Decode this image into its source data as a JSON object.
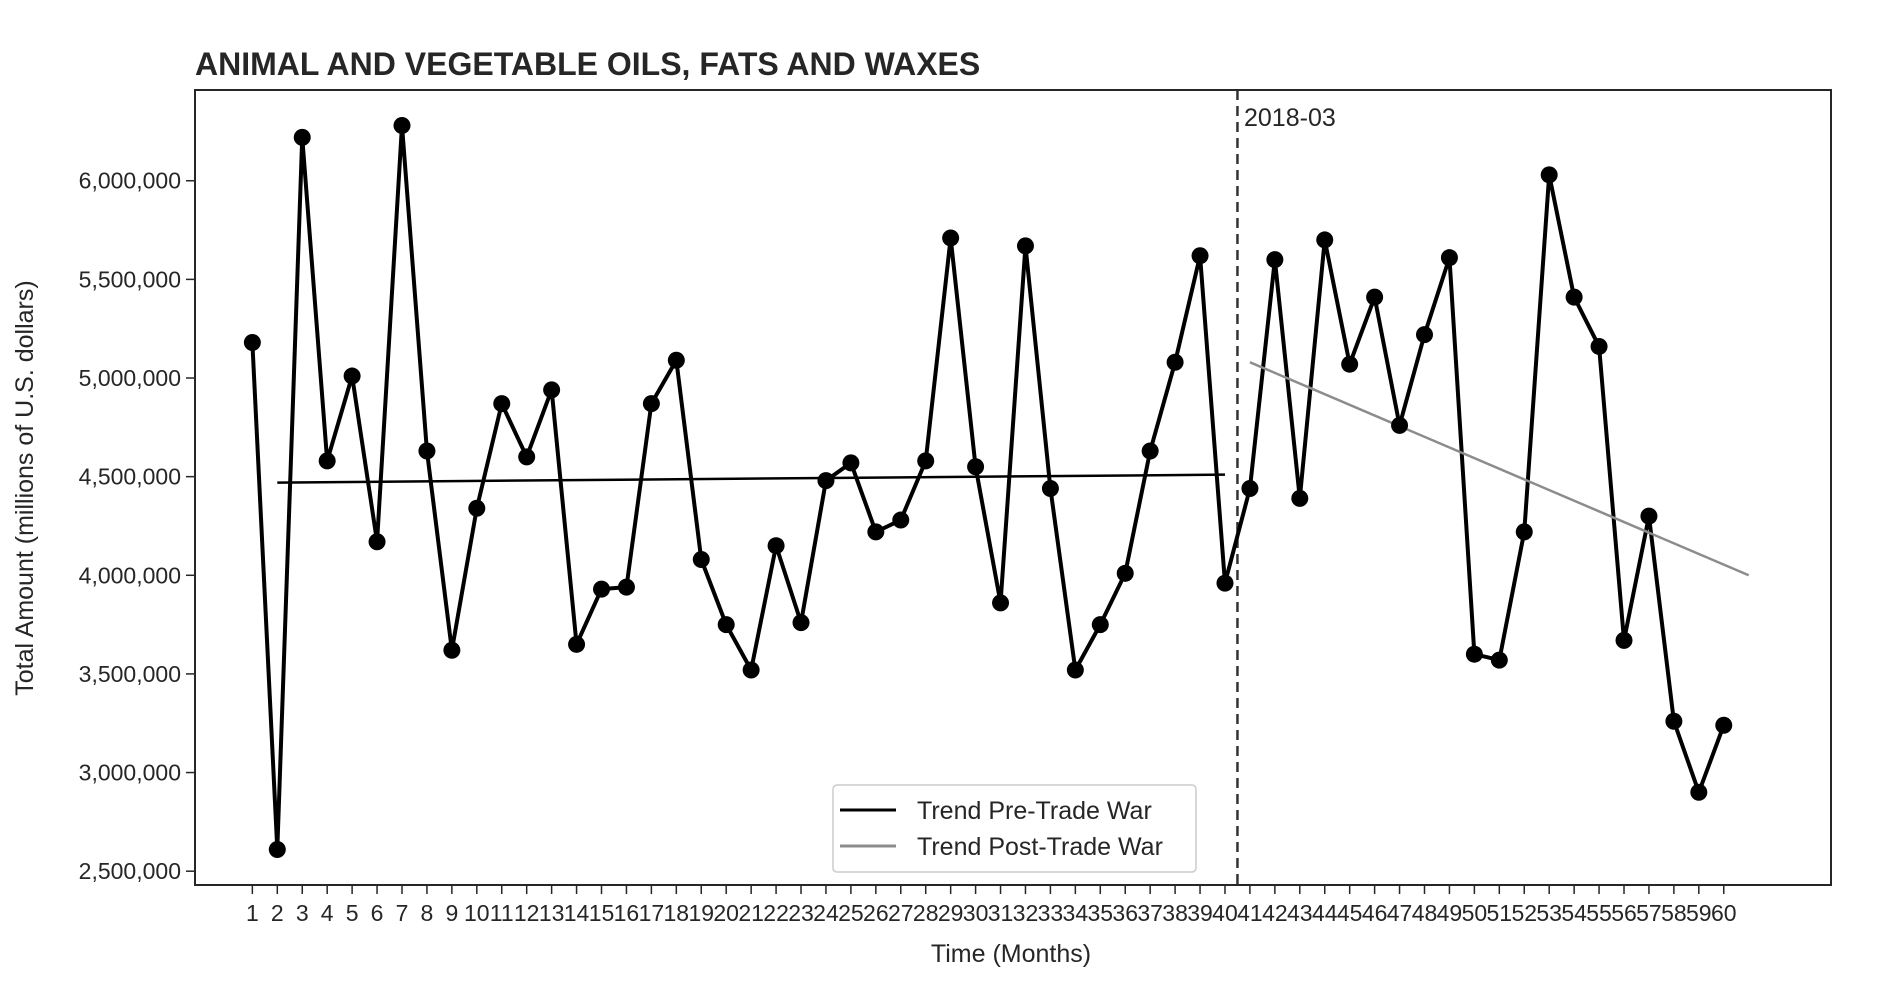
{
  "chart_data": {
    "type": "line",
    "title": "ANIMAL AND VEGETABLE OILS, FATS AND WAXES",
    "xlabel": "Time (Months)",
    "ylabel": "Total Amount (millions of U.S. dollars)",
    "x": [
      1,
      2,
      3,
      4,
      5,
      6,
      7,
      8,
      9,
      10,
      11,
      12,
      13,
      14,
      15,
      16,
      17,
      18,
      19,
      20,
      21,
      22,
      23,
      24,
      25,
      26,
      27,
      28,
      29,
      30,
      31,
      32,
      33,
      34,
      35,
      36,
      37,
      38,
      39,
      40,
      41,
      42,
      43,
      44,
      45,
      46,
      47,
      48,
      49,
      50,
      51,
      52,
      53,
      54,
      55,
      56,
      57,
      58,
      59,
      60
    ],
    "x_tick_labels": [
      "1",
      "2",
      "3",
      "4",
      "5",
      "6",
      "7",
      "8",
      "9",
      "10",
      "11",
      "12",
      "13",
      "14",
      "15",
      "16",
      "17",
      "18",
      "19",
      "20",
      "21",
      "22",
      "23",
      "24",
      "25",
      "26",
      "27",
      "28",
      "29",
      "30",
      "31",
      "32",
      "33",
      "34",
      "35",
      "36",
      "37",
      "38",
      "39",
      "40",
      "41",
      "42",
      "43",
      "44",
      "45",
      "46",
      "47",
      "48",
      "49",
      "50",
      "51",
      "52",
      "53",
      "54",
      "55",
      "56",
      "57",
      "58",
      "59",
      "60"
    ],
    "series": [
      {
        "values": [
          5180000,
          2610000,
          6220000,
          4580000,
          5010000,
          4170000,
          6280000,
          4630000,
          3620000,
          4340000,
          4870000,
          4600000,
          4940000,
          3650000,
          3930000,
          3940000,
          4870000,
          5090000,
          4080000,
          3750000,
          3520000,
          4150000,
          3760000,
          4480000,
          4570000,
          4220000,
          4280000,
          4580000,
          5710000,
          4550000,
          3860000,
          5670000,
          4440000,
          3520000,
          3750000,
          4010000,
          4630000,
          5080000,
          5620000,
          3960000,
          4440000,
          5600000,
          4390000,
          5700000,
          5070000,
          5410000,
          4760000,
          5220000,
          5610000,
          3600000,
          3570000,
          4220000,
          6030000,
          5410000,
          5160000,
          3670000,
          4300000,
          3260000,
          2900000,
          3240000
        ],
        "color": "#000000"
      }
    ],
    "trends": [
      {
        "name": "Trend Pre-Trade War",
        "x": [
          2,
          40
        ],
        "y": [
          4470000,
          4510000
        ],
        "color": "#000000"
      },
      {
        "name": "Trend Post-Trade War",
        "x": [
          41,
          61
        ],
        "y": [
          5080000,
          4000000
        ],
        "color": "#8c8c8c"
      }
    ],
    "y_ticks": [
      2500000,
      3000000,
      3500000,
      4000000,
      4500000,
      5000000,
      5500000,
      6000000
    ],
    "y_tick_labels": [
      "2,500,000",
      "3,000,000",
      "3,500,000",
      "4,000,000",
      "4,500,000",
      "5,000,000",
      "5,500,000",
      "6,000,000"
    ],
    "xlim": [
      -1.3,
      64.3
    ],
    "ylim": [
      2430000,
      6460000
    ],
    "vline": {
      "x": 40.5,
      "label": "2018-03"
    },
    "legend": {
      "position": "bottom-center",
      "entries": [
        "Trend Pre-Trade War",
        "Trend Post-Trade War"
      ]
    },
    "grid": false
  }
}
